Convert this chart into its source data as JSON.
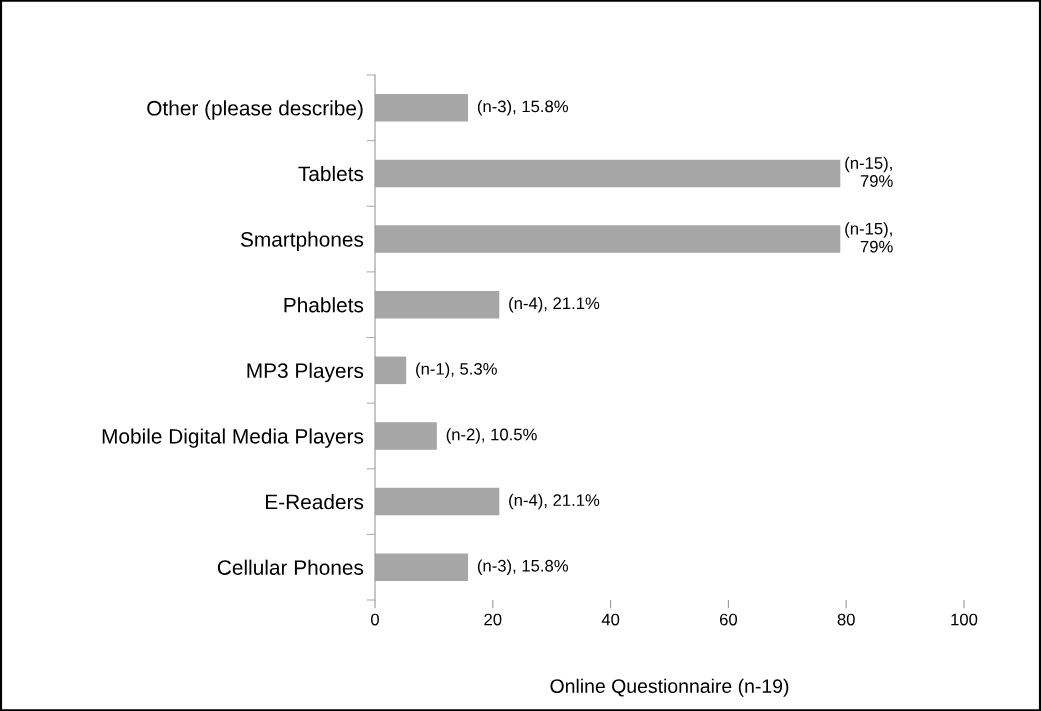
{
  "chart_data": {
    "type": "bar",
    "orientation": "horizontal",
    "xlabel": "Online Questionnaire (n-19)",
    "categories": [
      "Other (please describe)",
      "Tablets",
      "Smartphones",
      "Phablets",
      "MP3 Players",
      "Mobile Digital Media Players",
      "E-Readers",
      "Cellular Phones"
    ],
    "values": [
      15.8,
      79,
      79,
      21.1,
      5.3,
      10.5,
      21.1,
      15.8
    ],
    "value_labels": [
      "(n-3), 15.8%",
      "(n-15), 79%",
      "(n-15), 79%",
      "(n-4), 21.1%",
      "(n-1), 5.3%",
      "(n-2), 10.5%",
      "(n-4), 21.1%",
      "(n-3), 15.8%"
    ],
    "color": "#a6a6a6",
    "xlim": [
      0,
      100
    ],
    "xticks": [
      0,
      20,
      40,
      60,
      80,
      100
    ],
    "grid": false,
    "legend": false
  }
}
